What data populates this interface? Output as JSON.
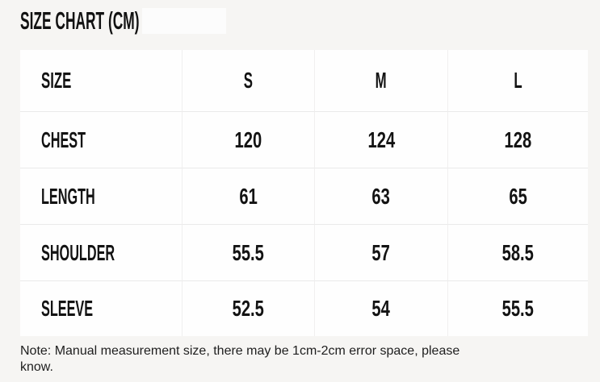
{
  "chart_data": {
    "type": "table",
    "title": "SIZE CHART (CM)",
    "unit": "CM",
    "columns": [
      "SIZE",
      "S",
      "M",
      "L"
    ],
    "rows": [
      [
        "CHEST",
        "120",
        "124",
        "128"
      ],
      [
        "LENGTH",
        "61",
        "63",
        "65"
      ],
      [
        "SHOULDER",
        "55.5",
        "57",
        "58.5"
      ],
      [
        "SLEEVE",
        "52.5",
        "54",
        "55.5"
      ]
    ],
    "note": "Note: Manual measurement size, there may be 1cm-2cm error space, please know."
  },
  "colors": {
    "page_background": "#f6f5f3",
    "table_background": "#fefefe",
    "grid_line": "#ececec",
    "text": "#131313"
  }
}
